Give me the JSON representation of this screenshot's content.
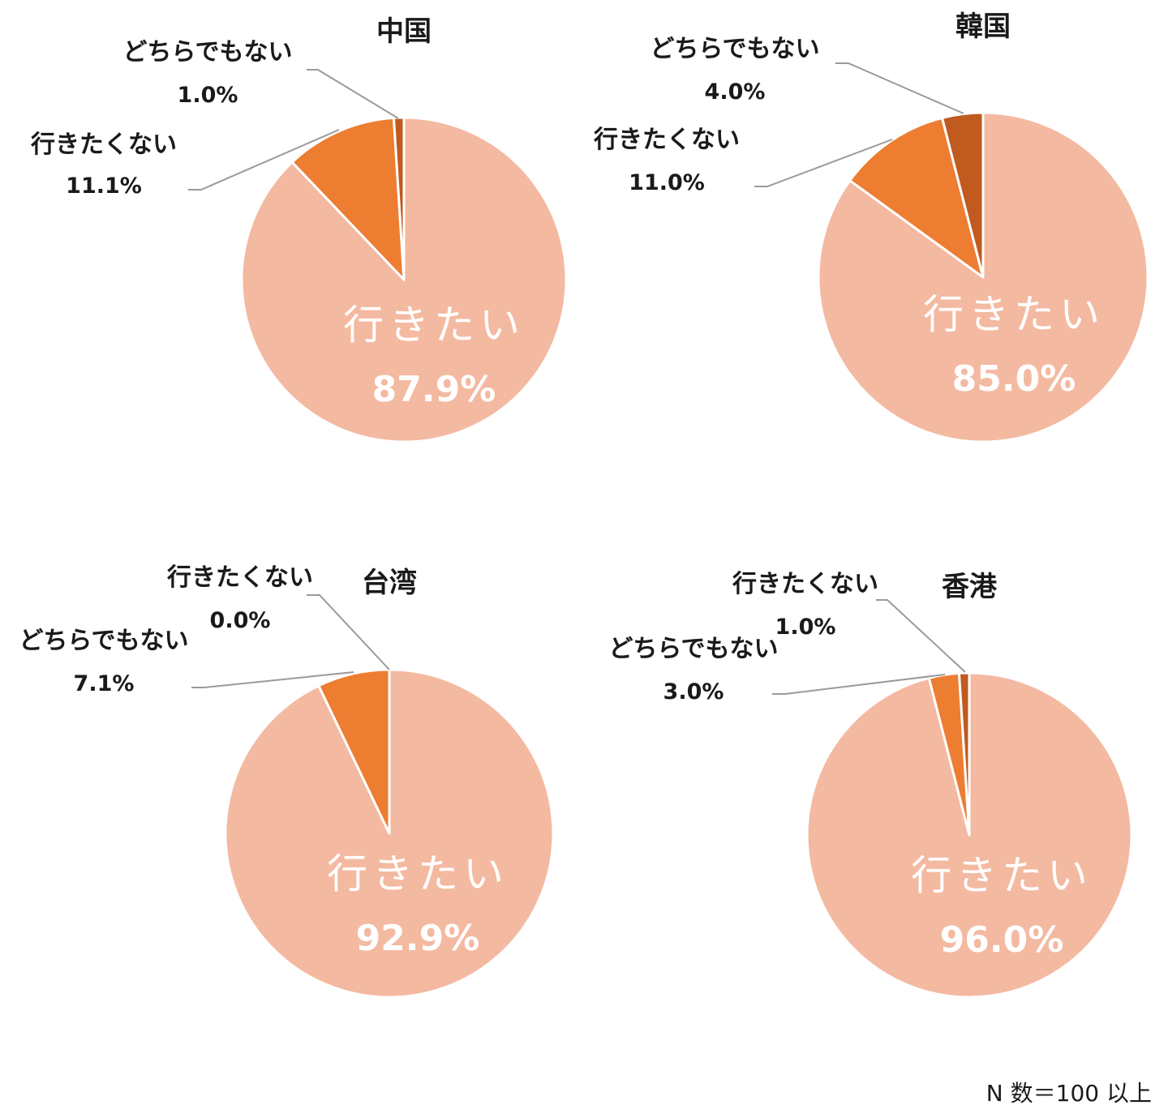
{
  "note": "N 数＝100 以上",
  "chart_data": [
    {
      "type": "pie",
      "title": "中国",
      "slices": [
        {
          "label": "行きたい",
          "value": 87.9,
          "display": "87.9%",
          "color": "#f4b9a1"
        },
        {
          "label": "行きたくない",
          "value": 11.1,
          "display": "11.1%",
          "color": "#ed7d31"
        },
        {
          "label": "どちらでもない",
          "value": 1.0,
          "display": "1.0%",
          "color": "#c05a1f"
        }
      ]
    },
    {
      "type": "pie",
      "title": "韓国",
      "slices": [
        {
          "label": "行きたい",
          "value": 85.0,
          "display": "85.0%",
          "color": "#f4b9a1"
        },
        {
          "label": "行きたくない",
          "value": 11.0,
          "display": "11.0%",
          "color": "#ed7d31"
        },
        {
          "label": "どちらでもない",
          "value": 4.0,
          "display": "4.0%",
          "color": "#c05a1f"
        }
      ]
    },
    {
      "type": "pie",
      "title": "台湾",
      "slices": [
        {
          "label": "行きたい",
          "value": 92.9,
          "display": "92.9%",
          "color": "#f4b9a1"
        },
        {
          "label": "どちらでもない",
          "value": 7.1,
          "display": "7.1%",
          "color": "#ed7d31"
        },
        {
          "label": "行きたくない",
          "value": 0.0,
          "display": "0.0%",
          "color": "#c05a1f"
        }
      ]
    },
    {
      "type": "pie",
      "title": "香港",
      "slices": [
        {
          "label": "行きたい",
          "value": 96.0,
          "display": "96.0%",
          "color": "#f4b9a1"
        },
        {
          "label": "どちらでもない",
          "value": 3.0,
          "display": "3.0%",
          "color": "#ed7d31"
        },
        {
          "label": "行きたくない",
          "value": 1.0,
          "display": "1.0%",
          "color": "#c05a1f"
        }
      ]
    }
  ]
}
